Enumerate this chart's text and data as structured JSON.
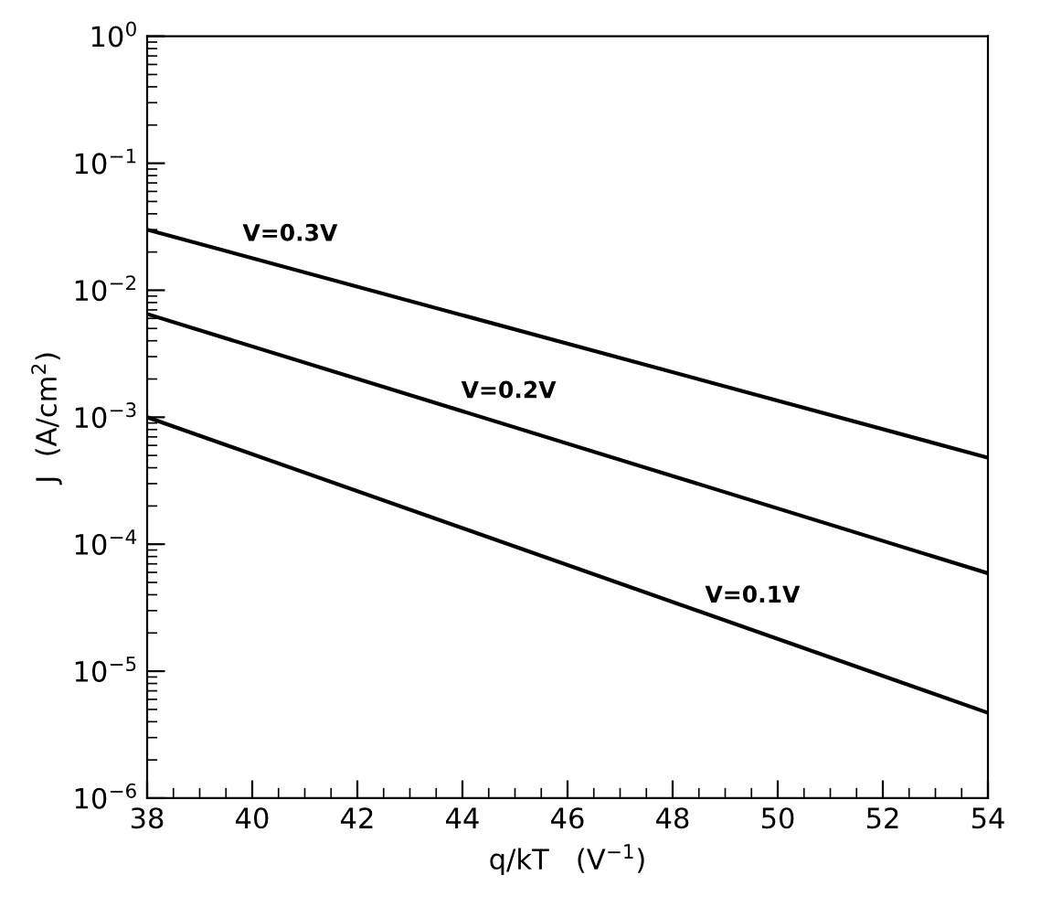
{
  "chart_data": {
    "type": "line",
    "xlabel": "q/kT   (V$^{−1}$)",
    "ylabel": "J  (A/cm$^{2}$)",
    "log": "y",
    "xlim": [
      38,
      54
    ],
    "xticks": [
      38,
      40,
      42,
      44,
      46,
      48,
      50,
      52,
      54
    ],
    "ylim": [
      1e-06,
      1
    ],
    "yticks": [
      {
        "value": 1e-06,
        "label": "10$^{−6}$"
      },
      {
        "value": 1e-05,
        "label": "10$^{−5}$"
      },
      {
        "value": 0.0001,
        "label": "10$^{−4}$"
      },
      {
        "value": 0.001,
        "label": "10$^{−3}$"
      },
      {
        "value": 0.01,
        "label": "10$^{−2}$"
      },
      {
        "value": 0.1,
        "label": "10$^{−1}$"
      },
      {
        "value": 1,
        "label": "10$^{0}$"
      }
    ],
    "x": [
      38,
      54
    ],
    "series": [
      {
        "name": "V=0.3V",
        "color": "#000000",
        "values": [
          0.03,
          0.00048
        ]
      },
      {
        "name": "V=0.2V",
        "color": "#000000",
        "values": [
          0.0065,
          5.9e-05
        ]
      },
      {
        "name": "V=0.1V",
        "color": "#000000",
        "values": [
          0.001,
          4.7e-06
        ]
      }
    ],
    "grid": false,
    "legend": false,
    "marker": "none",
    "line_style": "solid"
  }
}
